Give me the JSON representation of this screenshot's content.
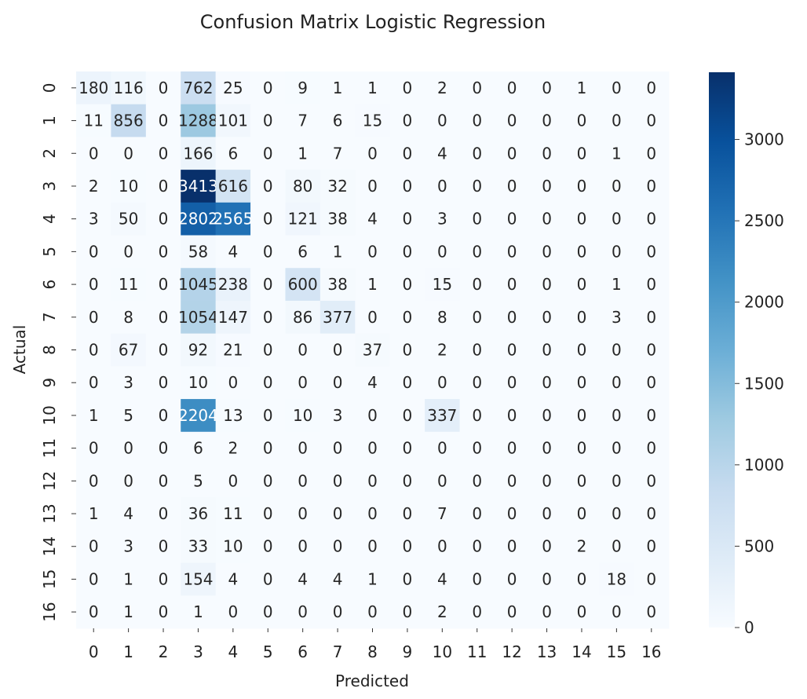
{
  "chart_data": {
    "type": "heatmap",
    "title": "Confusion Matrix Logistic Regression",
    "xlabel": "Predicted",
    "ylabel": "Actual",
    "x_tick_labels": [
      "0",
      "1",
      "2",
      "3",
      "4",
      "5",
      "6",
      "7",
      "8",
      "9",
      "10",
      "11",
      "12",
      "13",
      "14",
      "15",
      "16"
    ],
    "y_tick_labels": [
      "0",
      "1",
      "2",
      "3",
      "4",
      "5",
      "6",
      "7",
      "8",
      "9",
      "10",
      "11",
      "12",
      "13",
      "14",
      "15",
      "16"
    ],
    "colormap": "Blues",
    "colorbar": {
      "range": [
        0,
        3413
      ],
      "ticks": [
        0,
        500,
        1000,
        1500,
        2000,
        2500,
        3000
      ]
    },
    "matrix": [
      [
        180,
        116,
        0,
        762,
        25,
        0,
        9,
        1,
        1,
        0,
        2,
        0,
        0,
        0,
        1,
        0,
        0
      ],
      [
        11,
        856,
        0,
        1288,
        101,
        0,
        7,
        6,
        15,
        0,
        0,
        0,
        0,
        0,
        0,
        0,
        0
      ],
      [
        0,
        0,
        0,
        166,
        6,
        0,
        1,
        7,
        0,
        0,
        4,
        0,
        0,
        0,
        0,
        1,
        0
      ],
      [
        2,
        10,
        0,
        3413,
        616,
        0,
        80,
        32,
        0,
        0,
        0,
        0,
        0,
        0,
        0,
        0,
        0
      ],
      [
        3,
        50,
        0,
        2802,
        2565,
        0,
        121,
        38,
        4,
        0,
        3,
        0,
        0,
        0,
        0,
        0,
        0
      ],
      [
        0,
        0,
        0,
        58,
        4,
        0,
        6,
        1,
        0,
        0,
        0,
        0,
        0,
        0,
        0,
        0,
        0
      ],
      [
        0,
        11,
        0,
        1045,
        238,
        0,
        600,
        38,
        1,
        0,
        15,
        0,
        0,
        0,
        0,
        1,
        0
      ],
      [
        0,
        8,
        0,
        1054,
        147,
        0,
        86,
        377,
        0,
        0,
        8,
        0,
        0,
        0,
        0,
        3,
        0
      ],
      [
        0,
        67,
        0,
        92,
        21,
        0,
        0,
        0,
        37,
        0,
        2,
        0,
        0,
        0,
        0,
        0,
        0
      ],
      [
        0,
        3,
        0,
        10,
        0,
        0,
        0,
        0,
        4,
        0,
        0,
        0,
        0,
        0,
        0,
        0,
        0
      ],
      [
        1,
        5,
        0,
        2204,
        13,
        0,
        10,
        3,
        0,
        0,
        337,
        0,
        0,
        0,
        0,
        0,
        0
      ],
      [
        0,
        0,
        0,
        6,
        2,
        0,
        0,
        0,
        0,
        0,
        0,
        0,
        0,
        0,
        0,
        0,
        0
      ],
      [
        0,
        0,
        0,
        5,
        0,
        0,
        0,
        0,
        0,
        0,
        0,
        0,
        0,
        0,
        0,
        0,
        0
      ],
      [
        1,
        4,
        0,
        36,
        11,
        0,
        0,
        0,
        0,
        0,
        7,
        0,
        0,
        0,
        0,
        0,
        0
      ],
      [
        0,
        3,
        0,
        33,
        10,
        0,
        0,
        0,
        0,
        0,
        0,
        0,
        0,
        0,
        2,
        0,
        0
      ],
      [
        0,
        1,
        0,
        154,
        4,
        0,
        4,
        4,
        1,
        0,
        4,
        0,
        0,
        0,
        0,
        18,
        0
      ],
      [
        0,
        1,
        0,
        1,
        0,
        0,
        0,
        0,
        0,
        0,
        2,
        0,
        0,
        0,
        0,
        0,
        0
      ]
    ]
  }
}
